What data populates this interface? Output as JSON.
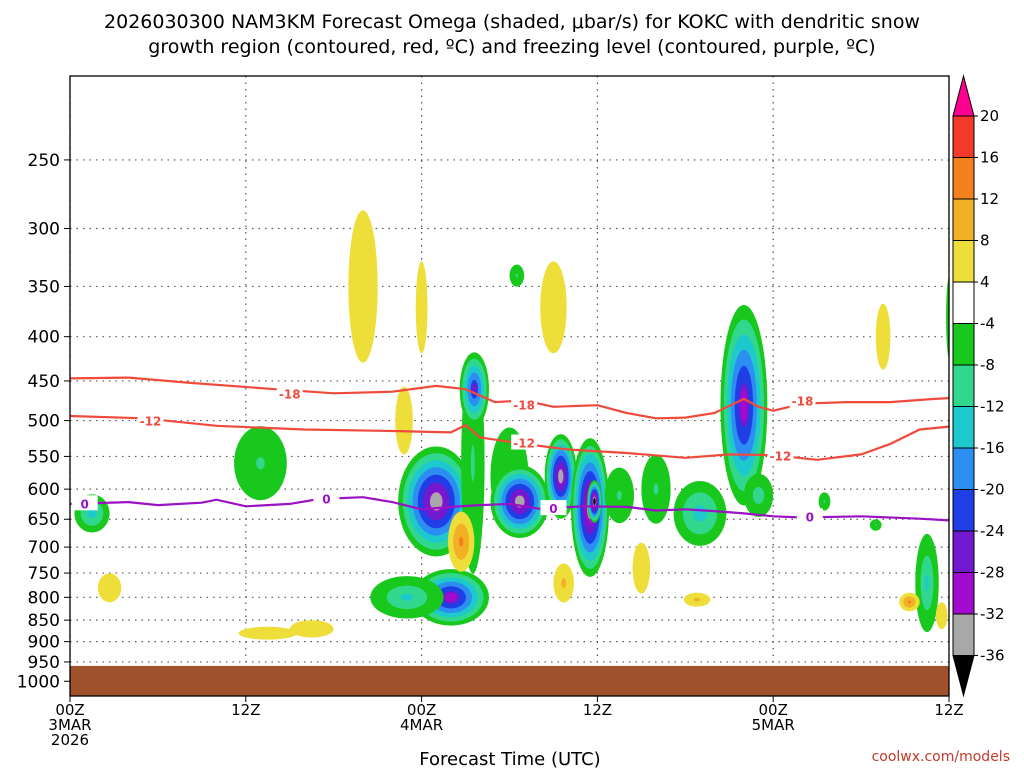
{
  "chart_data": {
    "type": "time-height contour",
    "title_line1": "2026030300 NAM3KM Forecast Omega (shaded, μbar/s) for KOKC with dendritic snow",
    "title_line2": "growth region (contoured, red, ºC) and freezing level (contoured, purple, ºC)",
    "xlabel": "Forecast Time (UTC)",
    "x_ticks": [
      {
        "hour": 0,
        "l1": "00Z",
        "l2": "3MAR",
        "l3": "2026"
      },
      {
        "hour": 12,
        "l1": "12Z",
        "l2": "",
        "l3": ""
      },
      {
        "hour": 24,
        "l1": "00Z",
        "l2": "4MAR",
        "l3": ""
      },
      {
        "hour": 36,
        "l1": "12Z",
        "l2": "",
        "l3": ""
      },
      {
        "hour": 48,
        "l1": "00Z",
        "l2": "5MAR",
        "l3": ""
      },
      {
        "hour": 60,
        "l1": "12Z",
        "l2": "",
        "l3": ""
      }
    ],
    "xlim": [
      0,
      60
    ],
    "y_ticks": [
      250,
      300,
      350,
      400,
      450,
      500,
      550,
      600,
      650,
      700,
      750,
      800,
      850,
      900,
      950,
      1000
    ],
    "ylim": [
      200,
      1040
    ],
    "ground_pressure": 960,
    "colorbar": {
      "labels": [
        "20",
        "16",
        "12",
        "8",
        "4",
        "-4",
        "-8",
        "-12",
        "-16",
        "-20",
        "-24",
        "-28",
        "-32",
        "-36"
      ],
      "colors": [
        "#ff0090",
        "#f33a2a",
        "#f47f1d",
        "#f2b125",
        "#eede3a",
        "#ffffff",
        "#19c81c",
        "#32d78e",
        "#1dc9cd",
        "#2c8ef0",
        "#1f3ee6",
        "#7019cf",
        "#a10bd0",
        "#a8a8a8",
        "#000000"
      ]
    },
    "isotherms": [
      {
        "name": "-18",
        "color": "#f04a3c",
        "points": [
          [
            0,
            447
          ],
          [
            4,
            446
          ],
          [
            8,
            452
          ],
          [
            14,
            460
          ],
          [
            18,
            465
          ],
          [
            22,
            463
          ],
          [
            25,
            456
          ],
          [
            27,
            460
          ],
          [
            29,
            476
          ],
          [
            31,
            474
          ],
          [
            33,
            482
          ],
          [
            36,
            480
          ],
          [
            38,
            490
          ],
          [
            40,
            497
          ],
          [
            42,
            496
          ],
          [
            44,
            490
          ],
          [
            46,
            472
          ],
          [
            47,
            482
          ],
          [
            48,
            487
          ],
          [
            50,
            478
          ],
          [
            53,
            476
          ],
          [
            56,
            476
          ],
          [
            59,
            472
          ],
          [
            60,
            471
          ]
        ],
        "labels": [
          [
            15,
            465
          ],
          [
            31,
            479
          ],
          [
            50,
            474
          ]
        ]
      },
      {
        "name": "-12",
        "color": "#f04a3c",
        "points": [
          [
            0,
            494
          ],
          [
            5,
            497
          ],
          [
            10,
            507
          ],
          [
            16,
            512
          ],
          [
            22,
            514
          ],
          [
            26,
            516
          ],
          [
            27,
            506
          ],
          [
            28,
            523
          ],
          [
            31,
            532
          ],
          [
            34,
            540
          ],
          [
            38,
            545
          ],
          [
            42,
            552
          ],
          [
            45,
            547
          ],
          [
            48,
            548
          ],
          [
            51,
            555
          ],
          [
            54,
            547
          ],
          [
            56,
            532
          ],
          [
            58,
            512
          ],
          [
            60,
            508
          ]
        ],
        "labels": [
          [
            5.5,
            500
          ],
          [
            31,
            530
          ],
          [
            48.5,
            549
          ]
        ]
      },
      {
        "name": "0",
        "color": "#9b12c4",
        "points": [
          [
            0,
            624
          ],
          [
            4,
            621
          ],
          [
            6,
            626
          ],
          [
            9,
            622
          ],
          [
            10,
            617
          ],
          [
            12,
            628
          ],
          [
            15,
            624
          ],
          [
            17,
            616
          ],
          [
            20,
            613
          ],
          [
            22,
            621
          ],
          [
            24,
            633
          ],
          [
            26,
            629
          ],
          [
            28,
            626
          ],
          [
            30,
            624
          ],
          [
            32,
            632
          ],
          [
            35,
            628
          ],
          [
            38,
            629
          ],
          [
            40,
            635
          ],
          [
            42,
            633
          ],
          [
            44,
            636
          ],
          [
            46,
            640
          ],
          [
            48,
            645
          ],
          [
            50,
            647
          ],
          [
            54,
            645
          ],
          [
            58,
            649
          ],
          [
            60,
            652
          ]
        ],
        "labels": [
          [
            1,
            623
          ],
          [
            17.5,
            615
          ],
          [
            33,
            631
          ],
          [
            50.5,
            645
          ]
        ]
      }
    ],
    "omega_features": [
      {
        "type": "up",
        "x": 1.5,
        "p": 640,
        "rx": 1.2,
        "ry": 65,
        "peak": -14
      },
      {
        "type": "up",
        "x": 13.0,
        "p": 560,
        "rx": 1.8,
        "ry": 110,
        "peak": -8
      },
      {
        "type": "up",
        "x": 25.0,
        "p": 620,
        "rx": 2.6,
        "ry": 180,
        "peak": -32
      },
      {
        "type": "up",
        "x": 26.0,
        "p": 800,
        "rx": 2.6,
        "ry": 120,
        "peak": -28
      },
      {
        "type": "up",
        "x": 23.0,
        "p": 800,
        "rx": 2.5,
        "ry": 90,
        "peak": -12
      },
      {
        "type": "up",
        "x": 27.5,
        "p": 560,
        "rx": 0.8,
        "ry": 320,
        "peak": -8
      },
      {
        "type": "up",
        "x": 27.6,
        "p": 460,
        "rx": 1.0,
        "ry": 90,
        "peak": -24
      },
      {
        "type": "up",
        "x": 30.0,
        "p": 580,
        "rx": 1.3,
        "ry": 150,
        "peak": -8
      },
      {
        "type": "up",
        "x": 30.5,
        "p": 340,
        "rx": 0.5,
        "ry": 20,
        "peak": -8
      },
      {
        "type": "up",
        "x": 30.7,
        "p": 620,
        "rx": 2.0,
        "ry": 120,
        "peak": -32
      },
      {
        "type": "up",
        "x": 33.5,
        "p": 580,
        "rx": 1.1,
        "ry": 130,
        "peak": -32
      },
      {
        "type": "up",
        "x": 35.5,
        "p": 630,
        "rx": 1.3,
        "ry": 230,
        "peak": -34
      },
      {
        "type": "up",
        "x": 35.8,
        "p": 620,
        "rx": 0.5,
        "ry": 70,
        "peak": -38
      },
      {
        "type": "up",
        "x": 37.5,
        "p": 610,
        "rx": 1.0,
        "ry": 90,
        "peak": -8
      },
      {
        "type": "up",
        "x": 40.0,
        "p": 600,
        "rx": 1.0,
        "ry": 110,
        "peak": -8
      },
      {
        "type": "up",
        "x": 43.0,
        "p": 640,
        "rx": 1.8,
        "ry": 110,
        "peak": -14
      },
      {
        "type": "up",
        "x": 46.0,
        "p": 480,
        "rx": 1.6,
        "ry": 250,
        "peak": -28
      },
      {
        "type": "up",
        "x": 47.0,
        "p": 610,
        "rx": 1.0,
        "ry": 70,
        "peak": -10
      },
      {
        "type": "up",
        "x": 51.5,
        "p": 620,
        "rx": 0.4,
        "ry": 30,
        "peak": -8
      },
      {
        "type": "up",
        "x": 55.0,
        "p": 660,
        "rx": 0.4,
        "ry": 20,
        "peak": -8
      },
      {
        "type": "up",
        "x": 58.5,
        "p": 770,
        "rx": 0.8,
        "ry": 200,
        "peak": -12
      },
      {
        "type": "up",
        "x": 60.0,
        "p": 380,
        "rx": 0.2,
        "ry": 80,
        "peak": -8
      },
      {
        "type": "down",
        "x": 2.7,
        "p": 780,
        "rx": 0.8,
        "ry": 60,
        "peak": 5
      },
      {
        "type": "down",
        "x": 13.5,
        "p": 880,
        "rx": 2.0,
        "ry": 30,
        "peak": 5
      },
      {
        "type": "down",
        "x": 16.5,
        "p": 870,
        "rx": 1.5,
        "ry": 40,
        "peak": 5
      },
      {
        "type": "down",
        "x": 20.0,
        "p": 350,
        "rx": 1.0,
        "ry": 140,
        "peak": 6
      },
      {
        "type": "down",
        "x": 22.8,
        "p": 500,
        "rx": 0.6,
        "ry": 90,
        "peak": 5
      },
      {
        "type": "down",
        "x": 24.0,
        "p": 370,
        "rx": 0.4,
        "ry": 90,
        "peak": 5
      },
      {
        "type": "down",
        "x": 26.7,
        "p": 690,
        "rx": 0.9,
        "ry": 110,
        "peak": 13
      },
      {
        "type": "down",
        "x": 33.7,
        "p": 770,
        "rx": 0.7,
        "ry": 80,
        "peak": 9
      },
      {
        "type": "down",
        "x": 33.0,
        "p": 370,
        "rx": 0.9,
        "ry": 90,
        "peak": 5
      },
      {
        "type": "down",
        "x": 39.0,
        "p": 740,
        "rx": 0.6,
        "ry": 100,
        "peak": 5
      },
      {
        "type": "down",
        "x": 42.8,
        "p": 805,
        "rx": 0.9,
        "ry": 30,
        "peak": 9
      },
      {
        "type": "down",
        "x": 55.5,
        "p": 400,
        "rx": 0.5,
        "ry": 70,
        "peak": 5
      },
      {
        "type": "down",
        "x": 57.3,
        "p": 810,
        "rx": 0.7,
        "ry": 40,
        "peak": 13
      },
      {
        "type": "down",
        "x": 59.5,
        "p": 840,
        "rx": 0.4,
        "ry": 60,
        "peak": 6
      }
    ],
    "credit": "coolwx.com/models"
  }
}
